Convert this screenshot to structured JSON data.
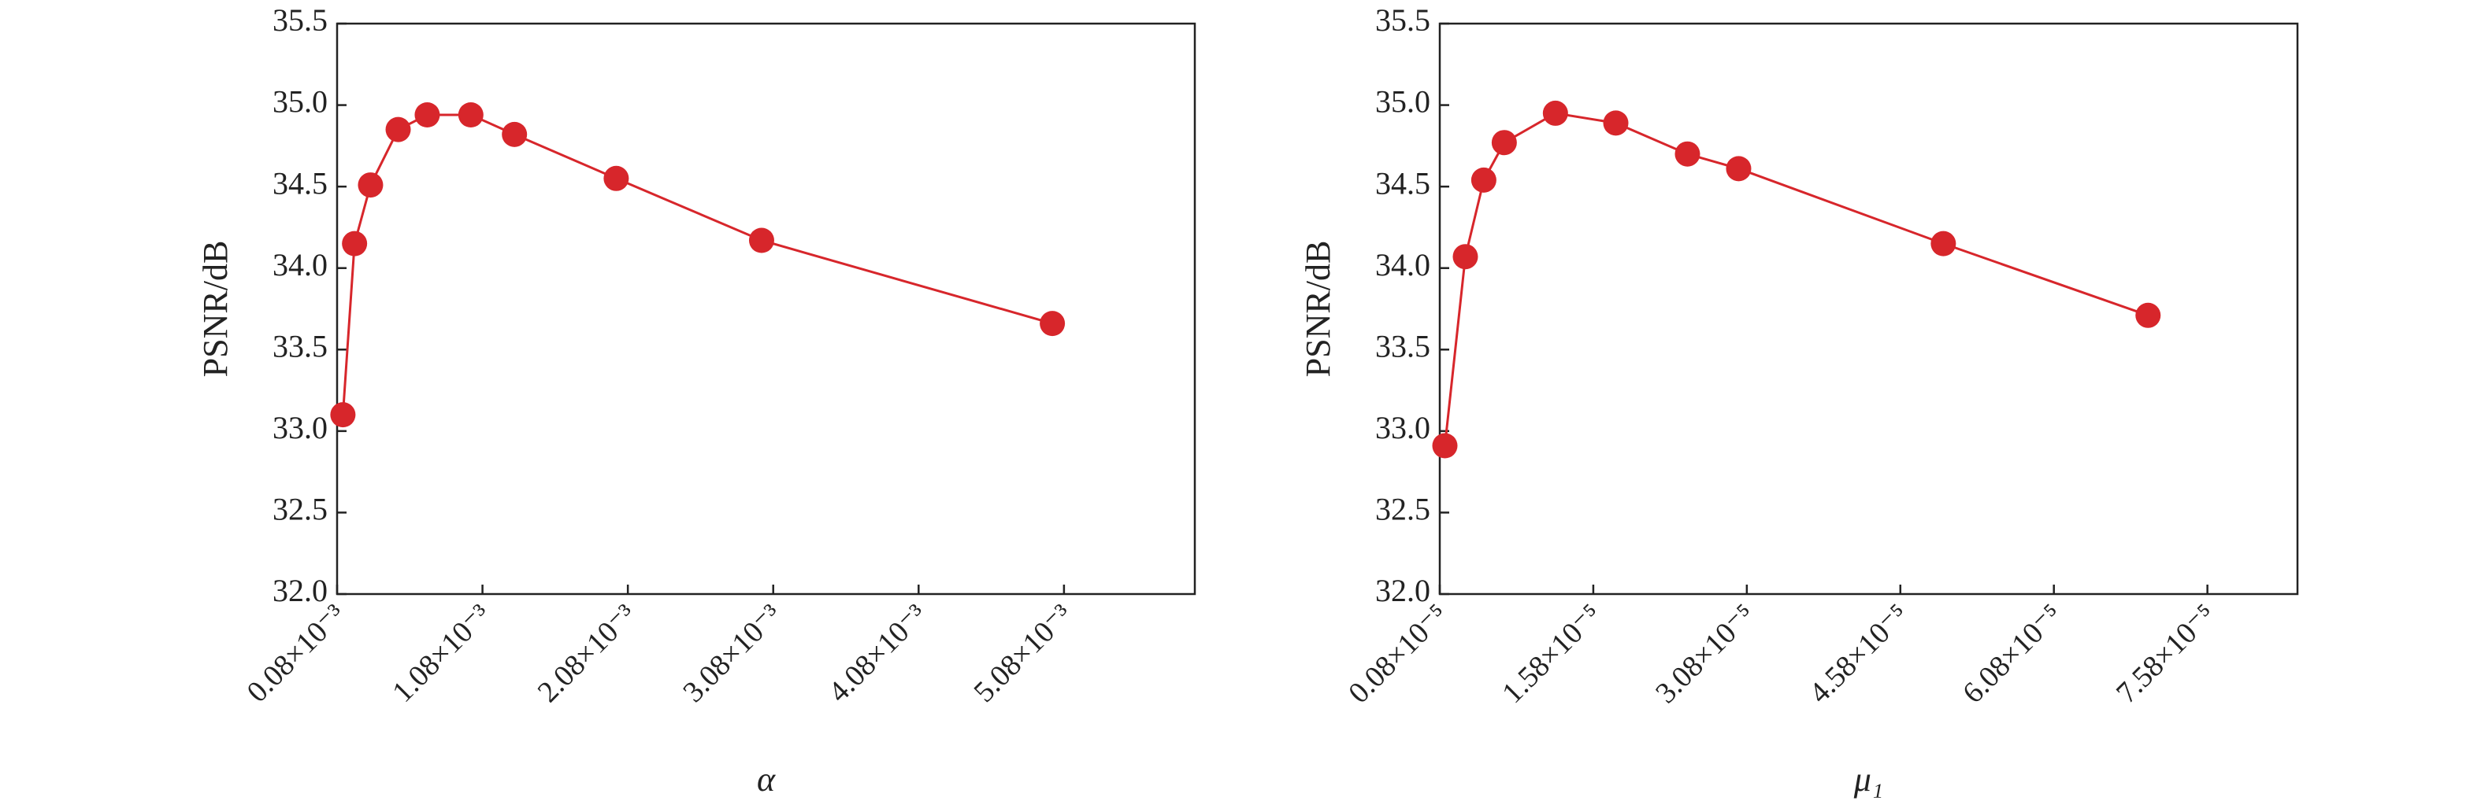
{
  "chart_data": [
    {
      "type": "line",
      "x_label": "α",
      "y_label": "PSNR/dB",
      "x": [
        0.12,
        0.2,
        0.31,
        0.5,
        0.7,
        1.0,
        1.3,
        2.0,
        3.0,
        5.0
      ],
      "series": [
        {
          "color": "#d7262b",
          "values": [
            33.1,
            34.15,
            34.51,
            34.85,
            34.94,
            34.94,
            34.82,
            34.55,
            34.17,
            33.66
          ]
        }
      ],
      "xlim": [
        0.08,
        5.98
      ],
      "xticks": [
        {
          "value": 0.08,
          "label": "0.08×10⁻³"
        },
        {
          "value": 1.08,
          "label": "1.08×10⁻³"
        },
        {
          "value": 2.08,
          "label": "2.08×10⁻³"
        },
        {
          "value": 3.08,
          "label": "3.08×10⁻³"
        },
        {
          "value": 4.08,
          "label": "4.08×10⁻³"
        },
        {
          "value": 5.08,
          "label": "5.08×10⁻³"
        }
      ],
      "ylim": [
        32,
        35.5
      ],
      "yticks": [
        {
          "value": 32,
          "label": "32.0"
        },
        32.5,
        {
          "value": 33,
          "label": "33.0"
        },
        33.5,
        {
          "value": 34,
          "label": "34.0"
        },
        34.5,
        {
          "value": 35,
          "label": "35.0"
        },
        35.5
      ]
    },
    {
      "type": "line",
      "x_label": "μ₁",
      "y_label": "PSNR/dB",
      "x": [
        0.13,
        0.33,
        0.51,
        0.71,
        1.21,
        1.8,
        2.5,
        3.0,
        5.0,
        7.0
      ],
      "series": [
        {
          "color": "#d7262b",
          "values": [
            32.91,
            34.07,
            34.54,
            34.77,
            34.95,
            34.89,
            34.7,
            34.61,
            34.15,
            33.71
          ]
        }
      ],
      "xlim": [
        0.08,
        8.46
      ],
      "xticks": [
        {
          "value": 0.08,
          "label": "0.08×10⁻⁵"
        },
        {
          "value": 1.58,
          "label": "1.58×10⁻⁵"
        },
        {
          "value": 3.08,
          "label": "3.08×10⁻⁵"
        },
        {
          "value": 4.58,
          "label": "4.58×10⁻⁵"
        },
        {
          "value": 6.08,
          "label": "6.08×10⁻⁵"
        },
        {
          "value": 7.58,
          "label": "7.58×10⁻⁵"
        }
      ],
      "ylim": [
        32,
        35.5
      ],
      "yticks": [
        {
          "value": 32,
          "label": "32.0"
        },
        32.5,
        {
          "value": 33,
          "label": "33.0"
        },
        33.5,
        {
          "value": 34,
          "label": "34.0"
        },
        34.5,
        {
          "value": 35,
          "label": "35.0"
        },
        35.5
      ]
    }
  ]
}
